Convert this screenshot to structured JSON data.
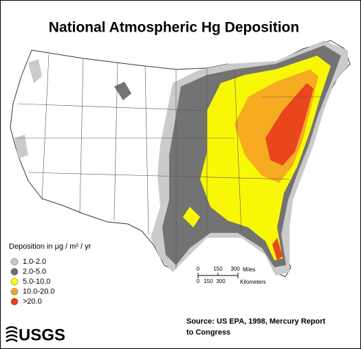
{
  "title": "National Atmospheric Hg Deposition",
  "legend": {
    "title": "Deposition in μg / m² / yr",
    "items": [
      {
        "label": "1.0-2.0",
        "color": "#c8c8c8"
      },
      {
        "label": "2.0-5.0",
        "color": "#6e6e6e"
      },
      {
        "label": "5.0-10.0",
        "color": "#ffff00"
      },
      {
        "label": "10.0-20.0",
        "color": "#f5a623"
      },
      {
        "label": ">20.0",
        "color": "#e8401c"
      }
    ]
  },
  "scale_bar": {
    "miles": [
      "0",
      "150",
      "300"
    ],
    "miles_unit": "Miles",
    "km": [
      "0",
      "150",
      "300"
    ],
    "km_unit": "Kilometers"
  },
  "source": [
    "Source:  US EPA, 1998, Mercury Report",
    "to Congress"
  ],
  "logo": "USGS"
}
